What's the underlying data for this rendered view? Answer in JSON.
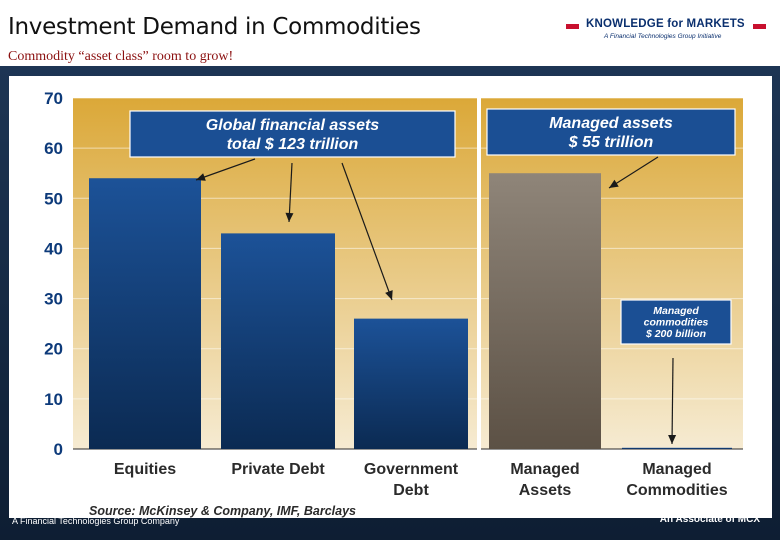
{
  "header": {
    "title": "Investment Demand in Commodities",
    "subtitle": "Commodity “asset class” room to grow!",
    "logo_text": "KNOWLEDGE for MARKETS",
    "logo_tagline": "A Financial Technologies Group Initiative"
  },
  "footer": {
    "left_text": "A Financial Technologies Group Company",
    "right_text": "An Associate of MCX"
  },
  "chart_data": {
    "type": "bar",
    "categories": [
      [
        "Equities"
      ],
      [
        "Private Debt"
      ],
      [
        "Government",
        "Debt"
      ],
      [
        "Managed",
        "Assets"
      ],
      [
        "Managed",
        "Commodities"
      ]
    ],
    "values": [
      54,
      43,
      26,
      55,
      0.2
    ],
    "bar_colors": [
      "#174a8c",
      "#174a8c",
      "#174a8c",
      "#8a7f72",
      "#174a8c"
    ],
    "ylim": [
      0,
      70
    ],
    "yticks": [
      0,
      10,
      20,
      30,
      40,
      50,
      60,
      70
    ],
    "annotations": [
      {
        "lines": [
          "Global financial assets",
          "total $ 123 trillion"
        ]
      },
      {
        "lines": [
          "Managed assets",
          "$ 55 trillion"
        ]
      },
      {
        "lines": [
          "Managed",
          "commodities",
          "$ 200 billion"
        ]
      }
    ],
    "source": "Source: McKinsey & Company, IMF, Barclays",
    "colors": {
      "bg_top": "#dba838",
      "bg_bottom": "#f6ebd2",
      "axis_text": "#0d3a7a",
      "callout_fill": "#1b4f94",
      "divider": "#ffffff"
    }
  }
}
